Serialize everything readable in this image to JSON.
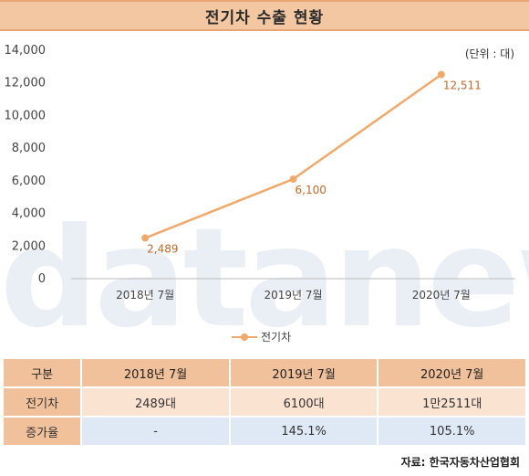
{
  "title": "전기차 수출 현황",
  "unit_label": "(단위 : 대)",
  "watermark": "datanews",
  "chart_data": {
    "type": "line",
    "categories": [
      "2018년 7월",
      "2019년 7월",
      "2020년 7월"
    ],
    "series": [
      {
        "name": "전기차",
        "values": [
          2489,
          6100,
          12511
        ],
        "labels": [
          "2,489",
          "6,100",
          "12,511"
        ],
        "color": "#f0a96a"
      }
    ],
    "yticks": [
      "0",
      "2,000",
      "4,000",
      "6,000",
      "8,000",
      "10,000",
      "12,000",
      "14,000"
    ],
    "ylim": [
      0,
      14000
    ],
    "grid": false,
    "legend": "bottom"
  },
  "table": {
    "headers": [
      "구분",
      "2018년 7월",
      "2019년 7월",
      "2020년 7월"
    ],
    "rows": [
      [
        "전기차",
        "2489대",
        "6100대",
        "1만2511대"
      ],
      [
        "증가율",
        "-",
        "145.1%",
        "105.1%"
      ]
    ]
  },
  "source": "자료: 한국자동차산업협회"
}
